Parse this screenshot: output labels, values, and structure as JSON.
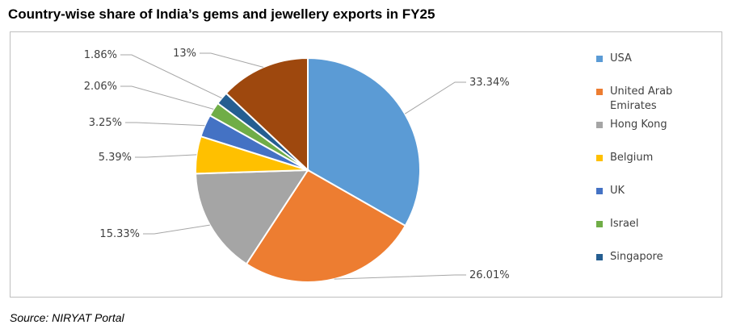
{
  "title": "Country-wise share of India’s gems and jewellery exports in FY25",
  "source": "Source: NIRYAT Portal",
  "chart_data": {
    "type": "pie",
    "title": "Country-wise share of India’s gems and jewellery exports in FY25",
    "legend_position": "right",
    "slices": [
      {
        "name": "USA",
        "value": 33.34,
        "label": "33.34%",
        "color": "#5B9BD5"
      },
      {
        "name": "United Arab Emirates",
        "value": 26.01,
        "label": "26.01%",
        "color": "#ED7D31"
      },
      {
        "name": "Hong Kong",
        "value": 15.33,
        "label": "15.33%",
        "color": "#A5A5A5"
      },
      {
        "name": "Belgium",
        "value": 5.39,
        "label": "5.39%",
        "color": "#FFC000"
      },
      {
        "name": "UK",
        "value": 3.25,
        "label": "3.25%",
        "color": "#4472C4"
      },
      {
        "name": "Israel",
        "value": 2.06,
        "label": "2.06%",
        "color": "#70AD47"
      },
      {
        "name": "Singapore",
        "value": 1.86,
        "label": "1.86%",
        "color": "#255E91"
      },
      {
        "name": "",
        "value": 13,
        "label": "13%",
        "color": "#9E480E"
      }
    ]
  }
}
